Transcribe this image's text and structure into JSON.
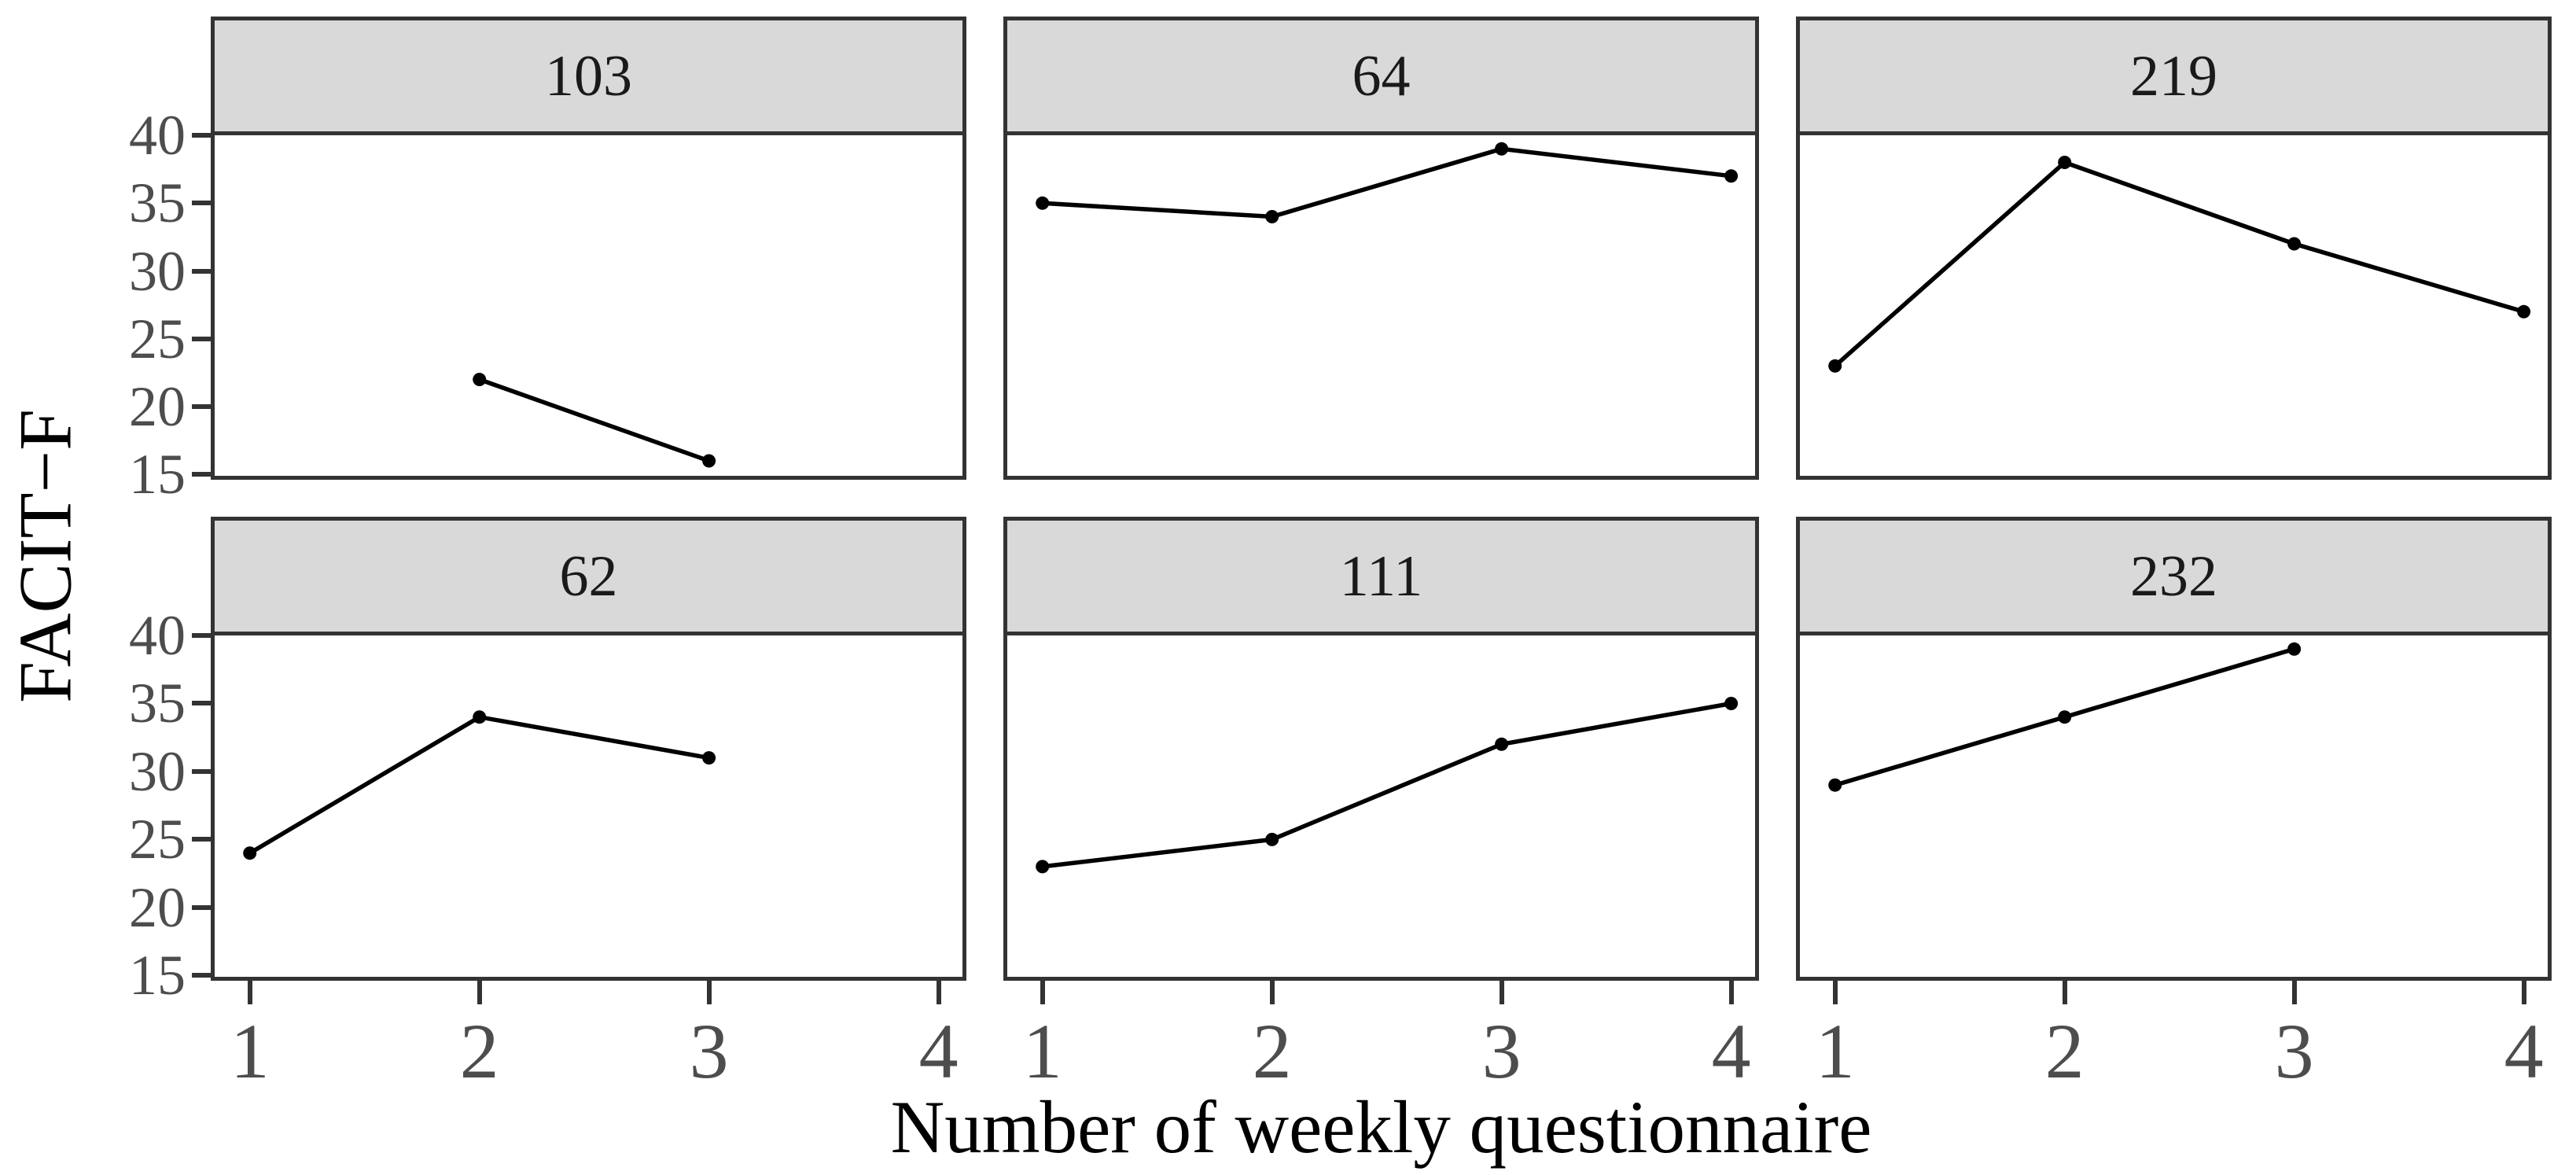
{
  "chart_data": {
    "type": "line",
    "title": "",
    "xlabel": "Number of weekly questionnaire",
    "ylabel": "FACIT−F",
    "x_tick_labels": [
      "1",
      "2",
      "3",
      "4"
    ],
    "y_tick_labels": [
      "40",
      "35",
      "30",
      "25",
      "20",
      "15"
    ],
    "x_ticks": [
      1,
      2,
      3,
      4
    ],
    "y_ticks": [
      40,
      35,
      30,
      25,
      20,
      15
    ],
    "xlim": [
      1,
      4
    ],
    "ylim": [
      15,
      40
    ],
    "grid": false,
    "legend": false,
    "facet_layout": {
      "rows": 2,
      "cols": 3
    },
    "facets": [
      {
        "label": "103",
        "x": [
          2,
          3
        ],
        "y": [
          22,
          16
        ]
      },
      {
        "label": "64",
        "x": [
          1,
          2,
          3,
          4
        ],
        "y": [
          35,
          34,
          39,
          37
        ]
      },
      {
        "label": "219",
        "x": [
          1,
          2,
          3,
          4
        ],
        "y": [
          23,
          38,
          32,
          27
        ]
      },
      {
        "label": "62",
        "x": [
          1,
          2,
          3
        ],
        "y": [
          24,
          34,
          31
        ]
      },
      {
        "label": "111",
        "x": [
          1,
          2,
          3,
          4
        ],
        "y": [
          23,
          25,
          32,
          35
        ]
      },
      {
        "label": "232",
        "x": [
          1,
          2,
          3
        ],
        "y": [
          29,
          34,
          39
        ]
      }
    ],
    "colors": {
      "background": "#ffffff",
      "strip_fill": "#d9d9d9",
      "panel_border": "#333333",
      "line": "#000000",
      "point": "#000000",
      "tick_label": "#4d4d4d",
      "axis_title": "#000000"
    }
  }
}
